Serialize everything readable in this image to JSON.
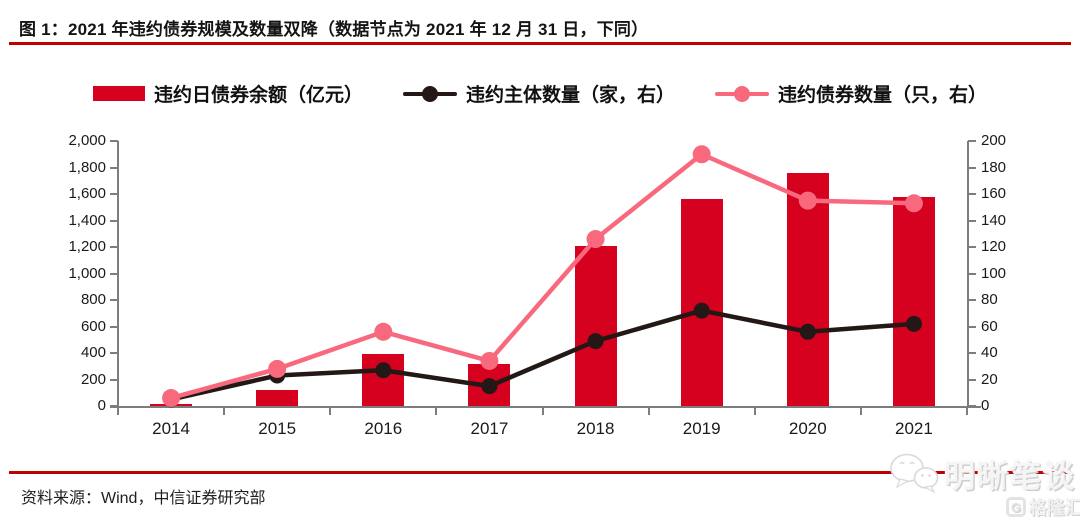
{
  "header": {
    "title": "图 1：2021 年违约债券规模及数量双降（数据节点为 2021 年 12 月 31 日，下同）"
  },
  "footer": {
    "source": "资料来源：Wind，中信证券研究部"
  },
  "watermark": {
    "wechat_icon": "wechat-chat-bubbles",
    "wechat_text": "明晰笔谈",
    "logo_letter": "G",
    "logo_text": "格隆汇"
  },
  "colors": {
    "accent_red": "#bf0000",
    "bar_red": "#d6001f",
    "line_black": "#231815",
    "line_pink": "#f8697d",
    "axis_gray": "#7d7d7d",
    "watermark_gray": "#e3e3e3"
  },
  "chart_data": {
    "type": "bar",
    "subtype": "combo-bar-line",
    "categories": [
      "2014",
      "2015",
      "2016",
      "2017",
      "2018",
      "2019",
      "2020",
      "2021"
    ],
    "series": [
      {
        "name": "违约日债券余额（亿元）",
        "type": "bar",
        "axis": "left",
        "color": "#d6001f",
        "values": [
          13,
          121,
          390,
          315,
          1210,
          1565,
          1760,
          1575
        ]
      },
      {
        "name": "违约主体数量（家，右）",
        "type": "line",
        "axis": "right",
        "color": "#231815",
        "values": [
          5,
          23,
          27,
          15,
          49,
          72,
          56,
          62
        ]
      },
      {
        "name": "违约债券数量（只，右）",
        "type": "line",
        "axis": "right",
        "color": "#f8697d",
        "values": [
          6,
          28,
          56,
          34,
          126,
          190,
          155,
          153
        ]
      }
    ],
    "left_axis": {
      "min": 0,
      "max": 2000,
      "step": 200,
      "labels_top_down": [
        "2,000",
        "1,800",
        "1,600",
        "1,400",
        "1,200",
        "1,000",
        "800",
        "600",
        "400",
        "200",
        "0"
      ]
    },
    "right_axis": {
      "min": 0,
      "max": 200,
      "step": 20,
      "labels_top_down": [
        "200",
        "180",
        "160",
        "140",
        "120",
        "100",
        "80",
        "60",
        "40",
        "20",
        "0"
      ]
    },
    "grid": false,
    "legend_position": "top"
  }
}
